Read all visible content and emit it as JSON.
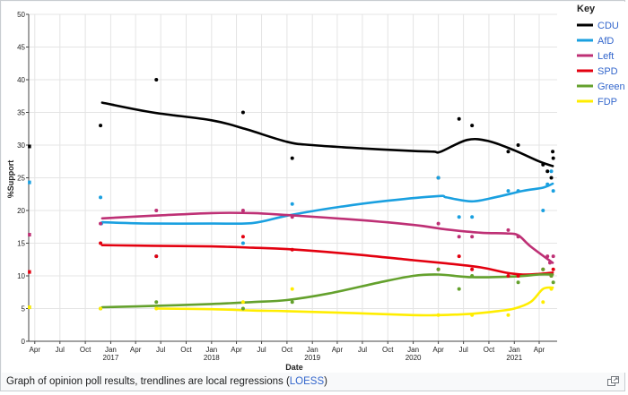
{
  "caption": {
    "text_before": "Graph of opinion poll results, trendlines are local regressions (",
    "link_text": "LOESS",
    "text_after": ")"
  },
  "legend": {
    "title": "Key"
  },
  "chart_data": {
    "type": "line",
    "title": "",
    "xlabel": "Date",
    "ylabel": "%Support",
    "xlim": [
      "2016-03-10",
      "2021-06-05"
    ],
    "ylim": [
      0,
      50
    ],
    "y_ticks": [
      0,
      5,
      10,
      15,
      20,
      25,
      30,
      35,
      40,
      45,
      50
    ],
    "x_ticks": [
      {
        "date": "2016-04-01",
        "label": "Apr",
        "year": ""
      },
      {
        "date": "2016-07-01",
        "label": "Jul",
        "year": ""
      },
      {
        "date": "2016-10-01",
        "label": "Oct",
        "year": ""
      },
      {
        "date": "2017-01-01",
        "label": "Jan",
        "year": "2017"
      },
      {
        "date": "2017-04-01",
        "label": "Apr",
        "year": ""
      },
      {
        "date": "2017-07-01",
        "label": "Jul",
        "year": ""
      },
      {
        "date": "2017-10-01",
        "label": "Oct",
        "year": ""
      },
      {
        "date": "2018-01-01",
        "label": "Jan",
        "year": "2018"
      },
      {
        "date": "2018-04-01",
        "label": "Apr",
        "year": ""
      },
      {
        "date": "2018-07-01",
        "label": "Jul",
        "year": ""
      },
      {
        "date": "2018-10-01",
        "label": "Oct",
        "year": ""
      },
      {
        "date": "2019-01-01",
        "label": "Jan",
        "year": "2019"
      },
      {
        "date": "2019-04-01",
        "label": "Apr",
        "year": ""
      },
      {
        "date": "2019-07-01",
        "label": "Jul",
        "year": ""
      },
      {
        "date": "2019-10-01",
        "label": "Oct",
        "year": ""
      },
      {
        "date": "2020-01-01",
        "label": "Jan",
        "year": "2020"
      },
      {
        "date": "2020-04-01",
        "label": "Apr",
        "year": ""
      },
      {
        "date": "2020-07-01",
        "label": "Jul",
        "year": ""
      },
      {
        "date": "2020-10-01",
        "label": "Oct",
        "year": ""
      },
      {
        "date": "2021-01-01",
        "label": "Jan",
        "year": "2021"
      },
      {
        "date": "2021-04-01",
        "label": "Apr",
        "year": ""
      }
    ],
    "grid": true,
    "legend_position": "right",
    "series": [
      {
        "name": "CDU",
        "color": "#000000",
        "trend": [
          [
            "2016-12-01",
            36.5
          ],
          [
            "2017-06-01",
            35.0
          ],
          [
            "2018-01-01",
            33.8
          ],
          [
            "2018-05-01",
            32.5
          ],
          [
            "2018-10-01",
            30.5
          ],
          [
            "2019-01-01",
            30.0
          ],
          [
            "2019-07-01",
            29.5
          ],
          [
            "2020-01-01",
            29.1
          ],
          [
            "2020-03-15",
            29.0
          ],
          [
            "2020-04-10",
            29.0
          ],
          [
            "2020-07-15",
            30.8
          ],
          [
            "2020-10-01",
            30.6
          ],
          [
            "2021-01-01",
            29.2
          ],
          [
            "2021-04-01",
            27.5
          ],
          [
            "2021-05-20",
            26.8
          ]
        ],
        "points": [
          [
            "2016-03-12",
            29.8
          ],
          [
            "2016-11-25",
            33.0
          ],
          [
            "2017-06-15",
            40.0
          ],
          [
            "2018-04-25",
            35.0
          ],
          [
            "2018-10-20",
            28.0
          ],
          [
            "2020-04-01",
            25.0
          ],
          [
            "2020-06-15",
            34.0
          ],
          [
            "2020-08-01",
            33.0
          ],
          [
            "2020-12-10",
            29.0
          ],
          [
            "2021-01-15",
            30.0
          ],
          [
            "2021-04-15",
            27.0
          ],
          [
            "2021-05-01",
            26.0
          ],
          [
            "2021-05-15",
            25.0
          ],
          [
            "2021-05-20",
            29.0
          ],
          [
            "2021-05-22",
            28.0
          ]
        ]
      },
      {
        "name": "AfD",
        "color": "#1aa0e0",
        "trend": [
          [
            "2016-12-01",
            18.2
          ],
          [
            "2017-06-01",
            18.0
          ],
          [
            "2018-01-01",
            18.0
          ],
          [
            "2018-06-01",
            18.1
          ],
          [
            "2018-10-01",
            19.2
          ],
          [
            "2019-04-01",
            20.5
          ],
          [
            "2019-10-01",
            21.5
          ],
          [
            "2020-04-01",
            22.2
          ],
          [
            "2020-05-01",
            22.0
          ],
          [
            "2020-08-01",
            21.4
          ],
          [
            "2020-11-01",
            22.1
          ],
          [
            "2021-02-01",
            23.0
          ],
          [
            "2021-04-15",
            23.5
          ],
          [
            "2021-05-20",
            24.1
          ]
        ],
        "points": [
          [
            "2016-03-12",
            24.3
          ],
          [
            "2016-11-25",
            22.0
          ],
          [
            "2016-11-28",
            18.0
          ],
          [
            "2017-06-15",
            13.0
          ],
          [
            "2018-04-25",
            15.0
          ],
          [
            "2018-10-20",
            21.0
          ],
          [
            "2020-04-01",
            25.0
          ],
          [
            "2020-06-15",
            19.0
          ],
          [
            "2020-08-01",
            19.0
          ],
          [
            "2020-12-10",
            23.0
          ],
          [
            "2021-01-15",
            23.0
          ],
          [
            "2021-04-15",
            20.0
          ],
          [
            "2021-05-01",
            24.0
          ],
          [
            "2021-05-15",
            26.0
          ],
          [
            "2021-05-22",
            23.0
          ]
        ]
      },
      {
        "name": "Left",
        "color": "#be3075",
        "trend": [
          [
            "2016-12-01",
            18.8
          ],
          [
            "2017-06-01",
            19.2
          ],
          [
            "2018-01-01",
            19.6
          ],
          [
            "2018-06-01",
            19.6
          ],
          [
            "2018-10-01",
            19.3
          ],
          [
            "2019-06-01",
            18.6
          ],
          [
            "2020-01-01",
            17.8
          ],
          [
            "2020-05-01",
            17.1
          ],
          [
            "2020-09-01",
            16.6
          ],
          [
            "2020-12-01",
            16.5
          ],
          [
            "2021-01-15",
            16.2
          ],
          [
            "2021-03-01",
            14.5
          ],
          [
            "2021-05-20",
            12.0
          ]
        ],
        "points": [
          [
            "2016-03-12",
            16.3
          ],
          [
            "2016-11-25",
            18.0
          ],
          [
            "2017-06-15",
            20.0
          ],
          [
            "2018-04-25",
            20.0
          ],
          [
            "2018-10-20",
            19.0
          ],
          [
            "2020-04-01",
            18.0
          ],
          [
            "2020-06-15",
            16.0
          ],
          [
            "2020-08-01",
            16.0
          ],
          [
            "2020-12-10",
            17.0
          ],
          [
            "2021-01-15",
            16.0
          ],
          [
            "2021-05-01",
            13.0
          ],
          [
            "2021-05-10",
            12.0
          ],
          [
            "2021-05-22",
            13.0
          ]
        ]
      },
      {
        "name": "SPD",
        "color": "#e3000f",
        "trend": [
          [
            "2016-12-01",
            14.7
          ],
          [
            "2017-06-01",
            14.6
          ],
          [
            "2018-01-01",
            14.5
          ],
          [
            "2018-06-01",
            14.3
          ],
          [
            "2018-10-01",
            14.1
          ],
          [
            "2019-06-01",
            13.3
          ],
          [
            "2020-01-01",
            12.4
          ],
          [
            "2020-05-01",
            11.9
          ],
          [
            "2020-09-01",
            11.3
          ],
          [
            "2020-12-01",
            10.5
          ],
          [
            "2021-02-01",
            10.2
          ],
          [
            "2021-04-01",
            10.3
          ],
          [
            "2021-05-20",
            10.5
          ]
        ],
        "points": [
          [
            "2016-03-12",
            10.6
          ],
          [
            "2016-11-25",
            15.0
          ],
          [
            "2017-06-15",
            13.0
          ],
          [
            "2018-04-25",
            16.0
          ],
          [
            "2018-10-20",
            14.0
          ],
          [
            "2020-04-01",
            11.0
          ],
          [
            "2020-06-15",
            13.0
          ],
          [
            "2020-08-01",
            11.0
          ],
          [
            "2020-12-10",
            10.0
          ],
          [
            "2021-01-15",
            10.0
          ],
          [
            "2021-04-15",
            11.0
          ],
          [
            "2021-05-15",
            10.0
          ],
          [
            "2021-05-22",
            11.0
          ]
        ]
      },
      {
        "name": "Green",
        "color": "#64a12d",
        "trend": [
          [
            "2016-12-01",
            5.2
          ],
          [
            "2017-06-01",
            5.4
          ],
          [
            "2018-01-01",
            5.7
          ],
          [
            "2018-06-01",
            6.0
          ],
          [
            "2018-10-01",
            6.3
          ],
          [
            "2019-03-01",
            7.3
          ],
          [
            "2019-09-01",
            9.0
          ],
          [
            "2020-01-01",
            10.0
          ],
          [
            "2020-04-01",
            10.2
          ],
          [
            "2020-08-01",
            9.8
          ],
          [
            "2021-01-01",
            9.9
          ],
          [
            "2021-04-01",
            10.2
          ],
          [
            "2021-05-20",
            10.2
          ]
        ],
        "points": [
          [
            "2016-03-12",
            5.2
          ],
          [
            "2016-11-25",
            5.0
          ],
          [
            "2017-06-15",
            6.0
          ],
          [
            "2018-04-25",
            5.0
          ],
          [
            "2018-10-20",
            6.0
          ],
          [
            "2020-04-01",
            11.0
          ],
          [
            "2020-06-15",
            8.0
          ],
          [
            "2020-08-01",
            10.0
          ],
          [
            "2021-01-15",
            9.0
          ],
          [
            "2021-04-15",
            11.0
          ],
          [
            "2021-05-15",
            10.0
          ],
          [
            "2021-05-22",
            9.0
          ]
        ]
      },
      {
        "name": "FDP",
        "color": "#ffed00",
        "trend": [
          [
            "2017-06-15",
            5.0
          ],
          [
            "2018-01-01",
            4.9
          ],
          [
            "2018-06-01",
            4.7
          ],
          [
            "2018-10-01",
            4.6
          ],
          [
            "2019-06-01",
            4.3
          ],
          [
            "2020-01-01",
            4.0
          ],
          [
            "2020-04-01",
            4.0
          ],
          [
            "2020-08-01",
            4.2
          ],
          [
            "2020-11-01",
            4.6
          ],
          [
            "2021-01-01",
            5.0
          ],
          [
            "2021-03-01",
            6.0
          ],
          [
            "2021-04-15",
            8.0
          ],
          [
            "2021-05-20",
            8.2
          ]
        ],
        "points": [
          [
            "2016-03-12",
            5.2
          ],
          [
            "2016-11-25",
            5.0
          ],
          [
            "2017-06-15",
            5.0
          ],
          [
            "2018-04-25",
            6.0
          ],
          [
            "2018-10-20",
            8.0
          ],
          [
            "2020-04-01",
            4.0
          ],
          [
            "2020-08-01",
            4.0
          ],
          [
            "2020-12-10",
            4.0
          ],
          [
            "2021-04-15",
            6.0
          ],
          [
            "2021-05-15",
            8.0
          ]
        ]
      }
    ]
  }
}
